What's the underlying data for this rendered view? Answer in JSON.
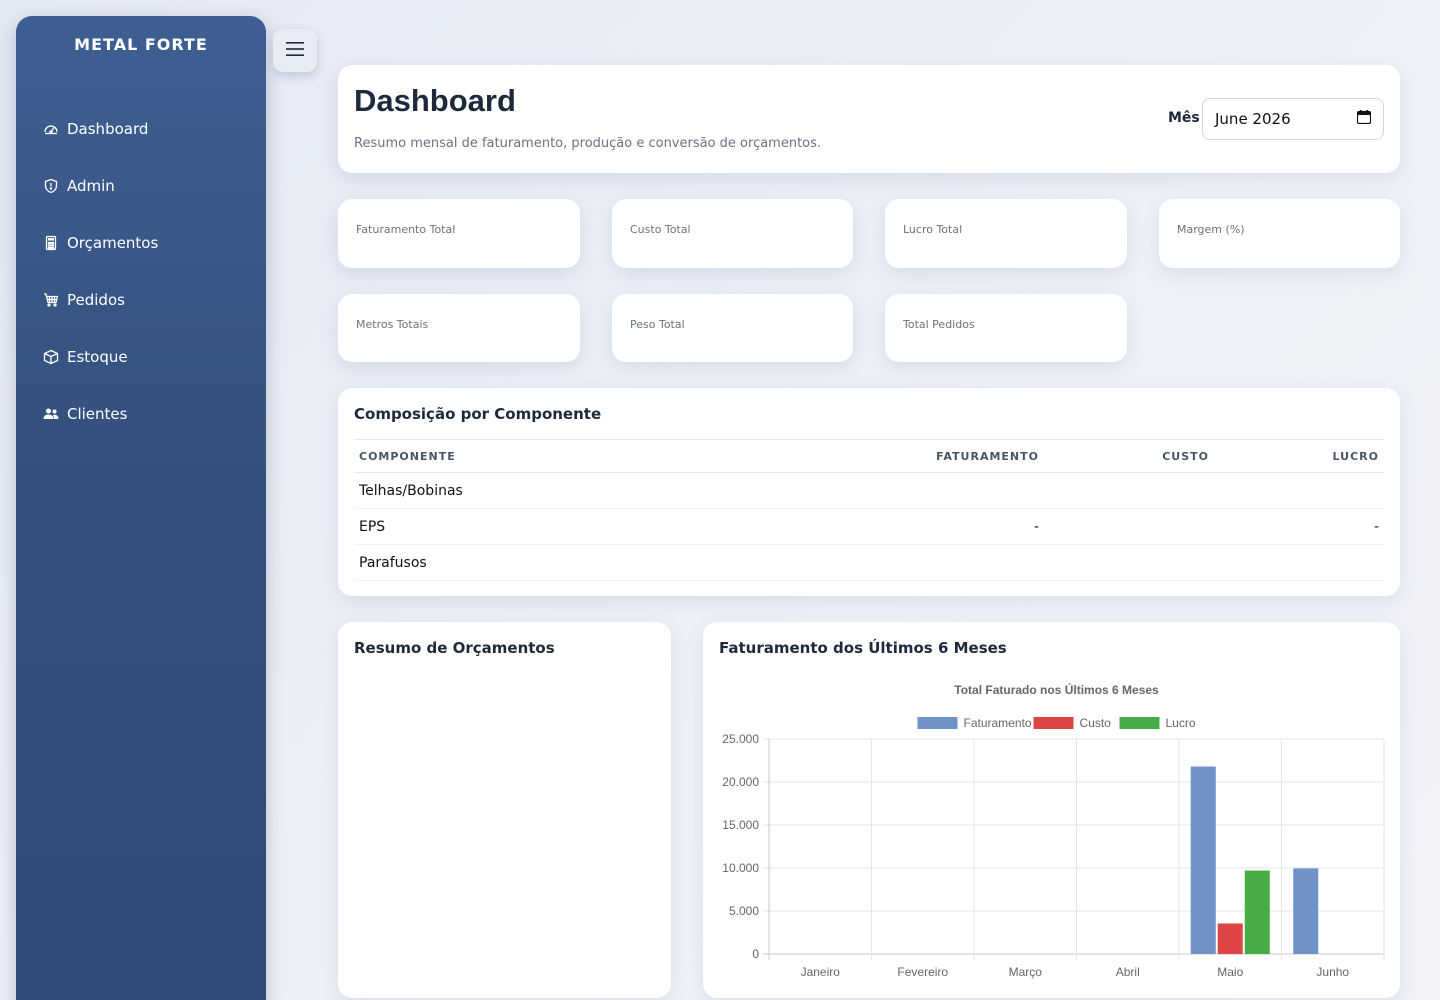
{
  "brand": "METAL FORTE",
  "sidebar": {
    "items": [
      {
        "label": "Dashboard",
        "icon": "gauge-icon"
      },
      {
        "label": "Admin",
        "icon": "shield-icon"
      },
      {
        "label": "Orçamentos",
        "icon": "calculator-icon"
      },
      {
        "label": "Pedidos",
        "icon": "cart-icon"
      },
      {
        "label": "Estoque",
        "icon": "box-icon"
      },
      {
        "label": "Clientes",
        "icon": "users-icon"
      }
    ]
  },
  "header": {
    "title": "Dashboard",
    "subtitle": "Resumo mensal de faturamento, produção e conversão de orçamentos.",
    "month_label": "Mês",
    "month_value": "June 2026"
  },
  "kpis": {
    "faturamento": "Faturamento Total",
    "custo": "Custo Total",
    "lucro": "Lucro Total",
    "margem": "Margem (%)",
    "metros": "Metros Totais",
    "peso": "Peso Total",
    "pedidos": "Total Pedidos"
  },
  "composicao": {
    "title": "Composição por Componente",
    "headers": {
      "componente": "COMPONENTE",
      "faturamento": "FATURAMENTO",
      "custo": "CUSTO",
      "lucro": "LUCRO"
    },
    "rows": [
      {
        "componente": "Telhas/Bobinas",
        "faturamento": "",
        "custo": "",
        "lucro": ""
      },
      {
        "componente": "EPS",
        "faturamento": "-",
        "custo": "",
        "lucro": "-"
      },
      {
        "componente": "Parafusos",
        "faturamento": "",
        "custo": "",
        "lucro": ""
      }
    ]
  },
  "resumo": {
    "title": "Resumo de Orçamentos"
  },
  "chart_card": {
    "title": "Faturamento dos Últimos 6 Meses"
  },
  "chart_data": {
    "type": "bar",
    "title": "Total Faturado nos Últimos 6 Meses",
    "categories": [
      "Janeiro",
      "Fevereiro",
      "Março",
      "Abril",
      "Maio",
      "Junho"
    ],
    "series": [
      {
        "name": "Faturamento",
        "color": "#6f93c6",
        "values": [
          0,
          0,
          0,
          0,
          21800,
          9950
        ]
      },
      {
        "name": "Custo",
        "color": "#dd4444",
        "values": [
          0,
          0,
          0,
          0,
          3550,
          0
        ]
      },
      {
        "name": "Lucro",
        "color": "#46ad46",
        "values": [
          0,
          0,
          0,
          0,
          9700,
          0
        ]
      }
    ],
    "ylim": [
      0,
      25000
    ],
    "yticks": [
      "0",
      "5.000",
      "10.000",
      "15.000",
      "20.000",
      "25.000"
    ],
    "ytick_values": [
      0,
      5000,
      10000,
      15000,
      20000,
      25000
    ],
    "legend": "top",
    "grid": true
  }
}
